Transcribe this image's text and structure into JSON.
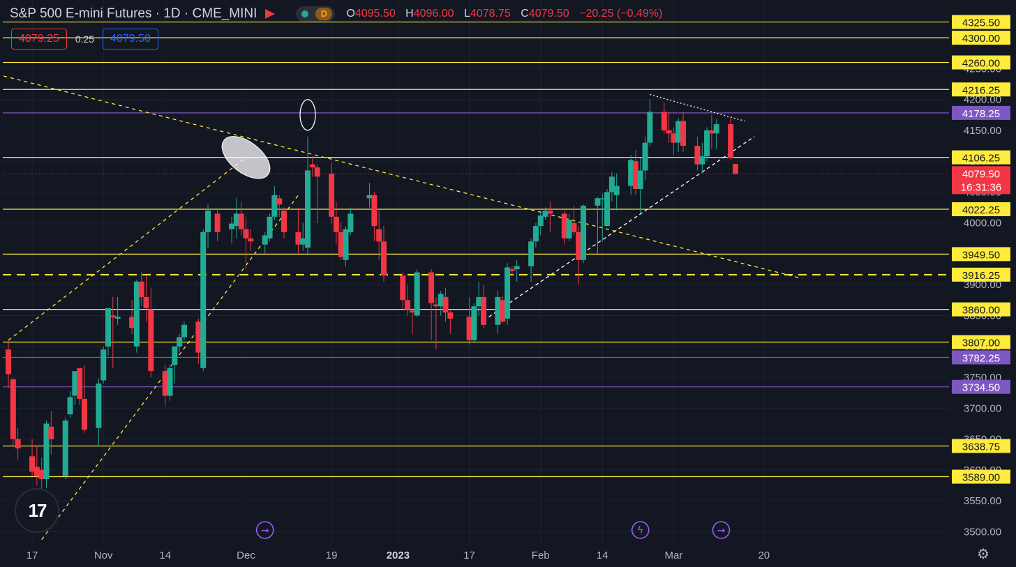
{
  "header": {
    "symbol": "S&P 500 E-mini Futures · 1D · CME_MINI",
    "badge": "D",
    "ohlc": {
      "o_label": "O",
      "o": "4095.50",
      "h_label": "H",
      "h": "4096.00",
      "l_label": "L",
      "l": "4078.75",
      "c_label": "C",
      "c": "4079.50",
      "change": "−20.25 (−0.49%)"
    }
  },
  "quote": {
    "bid": "4079.25",
    "spread": "0.25",
    "ask": "4079.50"
  },
  "logo_text": "17",
  "settings_icon": "gear-icon",
  "colors": {
    "background": "#131722",
    "up": "#22ab94",
    "down": "#f23645",
    "level_yellow": "#ffeb3b",
    "level_purple": "#7e57c2",
    "axis_text": "#b2b5be"
  },
  "chart_data": {
    "type": "candlestick",
    "ylim": [
      3480,
      4360
    ],
    "y_ticks": [
      3500,
      3550,
      3600,
      3650,
      3700,
      3750,
      3800,
      3850,
      3900,
      4000,
      4050,
      4100,
      4150,
      4200,
      4250
    ],
    "x_ticks": [
      "17",
      "Nov",
      "14",
      "Dec",
      "19",
      "2023",
      "17",
      "Feb",
      "14",
      "Mar",
      "20"
    ],
    "x_tick_dates": [
      "2022-10-17",
      "2022-11-01",
      "2022-11-14",
      "2022-12-01",
      "2022-12-19",
      "2023-01-02",
      "2023-01-17",
      "2023-02-01",
      "2023-02-14",
      "2023-03-01",
      "2023-03-20"
    ],
    "horizontal_levels": [
      {
        "price": 4325.5,
        "label": "4325.50",
        "color": "yellow"
      },
      {
        "price": 4300.0,
        "label": "4300.00",
        "color": "yellow"
      },
      {
        "price": 4260.0,
        "label": "4260.00",
        "color": "yellow"
      },
      {
        "price": 4216.25,
        "label": "4216.25",
        "color": "yellow"
      },
      {
        "price": 4178.25,
        "label": "4178.25",
        "color": "purple"
      },
      {
        "price": 4106.25,
        "label": "4106.25",
        "color": "yellow"
      },
      {
        "price": 4022.25,
        "label": "4022.25",
        "color": "yellow"
      },
      {
        "price": 3949.5,
        "label": "3949.50",
        "color": "yellow"
      },
      {
        "price": 3916.25,
        "label": "3916.25",
        "color": "yellow",
        "dashed": true
      },
      {
        "price": 3860.0,
        "label": "3860.00",
        "color": "yellow"
      },
      {
        "price": 3807.0,
        "label": "3807.00",
        "color": "yellow"
      },
      {
        "price": 3782.25,
        "label": "3782.25",
        "color": "purple"
      },
      {
        "price": 3734.5,
        "label": "3734.50",
        "color": "purple"
      },
      {
        "price": 3638.75,
        "label": "3638.75",
        "color": "yellow"
      },
      {
        "price": 3589.0,
        "label": "3589.00",
        "color": "yellow"
      }
    ],
    "last_price": {
      "price": 4079.5,
      "label": "4079.50",
      "countdown": "16:31:36"
    },
    "candles": [
      {
        "date": "2022-10-12",
        "o": 3795,
        "h": 3812,
        "l": 3733,
        "c": 3755
      },
      {
        "date": "2022-10-13",
        "o": 3747,
        "h": 3748,
        "l": 3640,
        "c": 3650
      },
      {
        "date": "2022-10-14",
        "o": 3650,
        "h": 3668,
        "l": 3617,
        "c": 3635
      },
      {
        "date": "2022-10-17",
        "o": 3622,
        "h": 3650,
        "l": 3590,
        "c": 3597
      },
      {
        "date": "2022-10-18",
        "o": 3605,
        "h": 3640,
        "l": 3575,
        "c": 3590
      },
      {
        "date": "2022-10-19",
        "o": 3600,
        "h": 3620,
        "l": 3567,
        "c": 3585
      },
      {
        "date": "2022-10-20",
        "o": 3585,
        "h": 3680,
        "l": 3570,
        "c": 3675
      },
      {
        "date": "2022-10-21",
        "o": 3670,
        "h": 3695,
        "l": 3625,
        "c": 3650
      },
      {
        "date": "2022-10-24",
        "o": 3590,
        "h": 3685,
        "l": 3585,
        "c": 3680
      },
      {
        "date": "2022-10-25",
        "o": 3690,
        "h": 3728,
        "l": 3685,
        "c": 3718
      },
      {
        "date": "2022-10-26",
        "o": 3720,
        "h": 3752,
        "l": 3705,
        "c": 3760
      },
      {
        "date": "2022-10-27",
        "o": 3765,
        "h": 3765,
        "l": 3705,
        "c": 3715
      },
      {
        "date": "2022-10-28",
        "o": 3715,
        "h": 3770,
        "l": 3660,
        "c": 3665
      },
      {
        "date": "2022-10-31",
        "o": 3668,
        "h": 3748,
        "l": 3640,
        "c": 3740
      },
      {
        "date": "2022-11-01",
        "o": 3745,
        "h": 3800,
        "l": 3740,
        "c": 3795
      },
      {
        "date": "2022-11-02",
        "o": 3800,
        "h": 3860,
        "l": 3785,
        "c": 3862
      },
      {
        "date": "2022-11-03",
        "o": 3850,
        "h": 3880,
        "l": 3765,
        "c": 3847
      },
      {
        "date": "2022-11-04",
        "o": 3845,
        "h": 3880,
        "l": 3835,
        "c": 3848
      },
      {
        "date": "2022-11-07",
        "o": 3848,
        "h": 3875,
        "l": 3820,
        "c": 3830
      },
      {
        "date": "2022-11-08",
        "o": 3800,
        "h": 3908,
        "l": 3790,
        "c": 3905
      },
      {
        "date": "2022-11-09",
        "o": 3905,
        "h": 3920,
        "l": 3865,
        "c": 3880
      },
      {
        "date": "2022-11-10",
        "o": 3880,
        "h": 3915,
        "l": 3840,
        "c": 3862
      },
      {
        "date": "2022-11-11",
        "o": 3860,
        "h": 3895,
        "l": 3750,
        "c": 3760
      },
      {
        "date": "2022-11-14",
        "o": 3760,
        "h": 3770,
        "l": 3705,
        "c": 3720
      },
      {
        "date": "2022-11-15",
        "o": 3720,
        "h": 3770,
        "l": 3712,
        "c": 3765
      },
      {
        "date": "2022-11-16",
        "o": 3770,
        "h": 3800,
        "l": 3740,
        "c": 3800
      },
      {
        "date": "2022-11-17",
        "o": 3800,
        "h": 3820,
        "l": 3790,
        "c": 3815
      },
      {
        "date": "2022-11-18",
        "o": 3815,
        "h": 3840,
        "l": 3810,
        "c": 3835
      },
      {
        "date": "2022-11-21",
        "o": 3840,
        "h": 3845,
        "l": 3772,
        "c": 3790
      },
      {
        "date": "2022-11-22",
        "o": 3765,
        "h": 3990,
        "l": 3760,
        "c": 3985
      },
      {
        "date": "2022-11-23",
        "o": 3985,
        "h": 4030,
        "l": 3960,
        "c": 4020
      },
      {
        "date": "2022-11-25",
        "o": 4015,
        "h": 4025,
        "l": 3970,
        "c": 3985
      },
      {
        "date": "2022-11-28",
        "o": 3990,
        "h": 4010,
        "l": 3967,
        "c": 3999
      },
      {
        "date": "2022-11-29",
        "o": 3995,
        "h": 4040,
        "l": 3975,
        "c": 4015
      },
      {
        "date": "2022-11-30",
        "o": 4015,
        "h": 4035,
        "l": 3980,
        "c": 3990
      },
      {
        "date": "2022-12-01",
        "o": 3990,
        "h": 4010,
        "l": 3925,
        "c": 3975
      },
      {
        "date": "2022-12-02",
        "o": 3975,
        "h": 3990,
        "l": 3955,
        "c": 3970
      },
      {
        "date": "2022-12-05",
        "o": 3965,
        "h": 3985,
        "l": 3950,
        "c": 3980
      },
      {
        "date": "2022-12-06",
        "o": 3975,
        "h": 4015,
        "l": 3970,
        "c": 4010
      },
      {
        "date": "2022-12-07",
        "o": 4010,
        "h": 4060,
        "l": 4005,
        "c": 4045
      },
      {
        "date": "2022-12-08",
        "o": 4040,
        "h": 4045,
        "l": 4010,
        "c": 4030
      },
      {
        "date": "2022-12-09",
        "o": 4020,
        "h": 4025,
        "l": 3975,
        "c": 3985
      },
      {
        "date": "2022-12-12",
        "o": 3985,
        "h": 4025,
        "l": 3950,
        "c": 3965
      },
      {
        "date": "2022-12-13",
        "o": 3965,
        "h": 4000,
        "l": 3955,
        "c": 3975
      },
      {
        "date": "2022-12-14",
        "o": 3960,
        "h": 4140,
        "l": 3950,
        "c": 4085
      },
      {
        "date": "2022-12-15",
        "o": 4095,
        "h": 4108,
        "l": 4075,
        "c": 4090
      },
      {
        "date": "2022-12-16",
        "o": 4090,
        "h": 4095,
        "l": 4000,
        "c": 4075
      },
      {
        "date": "2022-12-19",
        "o": 4080,
        "h": 4098,
        "l": 3998,
        "c": 4010
      },
      {
        "date": "2022-12-20",
        "o": 4010,
        "h": 4035,
        "l": 3965,
        "c": 3985
      },
      {
        "date": "2022-12-21",
        "o": 3985,
        "h": 4000,
        "l": 3940,
        "c": 3945
      },
      {
        "date": "2022-12-22",
        "o": 3940,
        "h": 3995,
        "l": 3930,
        "c": 3990
      },
      {
        "date": "2022-12-23",
        "o": 3985,
        "h": 4025,
        "l": 3980,
        "c": 4015
      },
      {
        "date": "2022-12-27",
        "o": 4040,
        "h": 4065,
        "l": 4025,
        "c": 4045
      },
      {
        "date": "2022-12-28",
        "o": 4045,
        "h": 4050,
        "l": 3970,
        "c": 3995
      },
      {
        "date": "2022-12-29",
        "o": 3990,
        "h": 4020,
        "l": 3940,
        "c": 3970
      },
      {
        "date": "2022-12-30",
        "o": 3970,
        "h": 3995,
        "l": 3905,
        "c": 3915
      },
      {
        "date": "2023-01-03",
        "o": 3915,
        "h": 3920,
        "l": 3860,
        "c": 3875
      },
      {
        "date": "2023-01-04",
        "o": 3875,
        "h": 3900,
        "l": 3850,
        "c": 3860
      },
      {
        "date": "2023-01-05",
        "o": 3858,
        "h": 3862,
        "l": 3820,
        "c": 3855
      },
      {
        "date": "2023-01-06",
        "o": 3850,
        "h": 3925,
        "l": 3848,
        "c": 3920
      },
      {
        "date": "2023-01-09",
        "o": 3920,
        "h": 3925,
        "l": 3810,
        "c": 3870
      },
      {
        "date": "2023-01-10",
        "o": 3868,
        "h": 3880,
        "l": 3795,
        "c": 3865
      },
      {
        "date": "2023-01-11",
        "o": 3865,
        "h": 3890,
        "l": 3850,
        "c": 3885
      },
      {
        "date": "2023-01-12",
        "o": 3880,
        "h": 3895,
        "l": 3840,
        "c": 3855
      },
      {
        "date": "2023-01-13",
        "o": 3855,
        "h": 3860,
        "l": 3820,
        "c": 3845
      },
      {
        "date": "2023-01-17",
        "o": 3848,
        "h": 3880,
        "l": 3803,
        "c": 3810
      },
      {
        "date": "2023-01-18",
        "o": 3810,
        "h": 3870,
        "l": 3808,
        "c": 3865
      },
      {
        "date": "2023-01-19",
        "o": 3865,
        "h": 3905,
        "l": 3850,
        "c": 3880
      },
      {
        "date": "2023-01-20",
        "o": 3880,
        "h": 3900,
        "l": 3830,
        "c": 3835
      },
      {
        "date": "2023-01-23",
        "o": 3835,
        "h": 3890,
        "l": 3820,
        "c": 3880
      },
      {
        "date": "2023-01-24",
        "o": 3875,
        "h": 3882,
        "l": 3838,
        "c": 3840
      },
      {
        "date": "2023-01-25",
        "o": 3845,
        "h": 3935,
        "l": 3835,
        "c": 3928
      },
      {
        "date": "2023-01-26",
        "o": 3925,
        "h": 3930,
        "l": 3915,
        "c": 3922
      },
      {
        "date": "2023-01-27",
        "o": 3925,
        "h": 3940,
        "l": 3905,
        "c": 3930
      },
      {
        "date": "2023-01-30",
        "o": 3930,
        "h": 3975,
        "l": 3905,
        "c": 3970
      },
      {
        "date": "2023-01-31",
        "o": 3970,
        "h": 4000,
        "l": 3960,
        "c": 3995
      },
      {
        "date": "2023-02-01",
        "o": 3995,
        "h": 4020,
        "l": 3980,
        "c": 4012
      },
      {
        "date": "2023-02-02",
        "o": 4010,
        "h": 4025,
        "l": 4005,
        "c": 4020
      },
      {
        "date": "2023-02-03",
        "o": 4020,
        "h": 4035,
        "l": 3985,
        "c": 4015
      },
      {
        "date": "2023-02-06",
        "o": 4015,
        "h": 4020,
        "l": 3965,
        "c": 3975
      },
      {
        "date": "2023-02-07",
        "o": 3975,
        "h": 4015,
        "l": 3970,
        "c": 4005
      },
      {
        "date": "2023-02-08",
        "o": 4000,
        "h": 4028,
        "l": 3980,
        "c": 3985
      },
      {
        "date": "2023-02-09",
        "o": 3985,
        "h": 3995,
        "l": 3900,
        "c": 3940
      },
      {
        "date": "2023-02-10",
        "o": 3940,
        "h": 4030,
        "l": 3935,
        "c": 4028
      },
      {
        "date": "2023-02-13",
        "o": 4028,
        "h": 4042,
        "l": 3950,
        "c": 4040
      },
      {
        "date": "2023-02-14",
        "o": 4040,
        "h": 4048,
        "l": 3970,
        "c": 4040
      },
      {
        "date": "2023-02-15",
        "o": 3995,
        "h": 4055,
        "l": 3995,
        "c": 4050
      },
      {
        "date": "2023-02-16",
        "o": 4050,
        "h": 4082,
        "l": 4035,
        "c": 4075
      },
      {
        "date": "2023-02-17",
        "o": 4045,
        "h": 4080,
        "l": 4020,
        "c": 4060
      },
      {
        "date": "2023-02-20",
        "o": 4060,
        "h": 4110,
        "l": 4045,
        "c": 4102
      },
      {
        "date": "2023-02-21",
        "o": 4100,
        "h": 4118,
        "l": 4045,
        "c": 4055
      },
      {
        "date": "2023-02-22",
        "o": 4055,
        "h": 4105,
        "l": 4015,
        "c": 4085
      },
      {
        "date": "2023-02-23",
        "o": 4085,
        "h": 4140,
        "l": 4070,
        "c": 4130
      },
      {
        "date": "2023-02-24",
        "o": 4130,
        "h": 4200,
        "l": 4125,
        "c": 4180
      },
      {
        "date": "2023-02-27",
        "o": 4180,
        "h": 4195,
        "l": 4145,
        "c": 4150
      },
      {
        "date": "2023-02-28",
        "o": 4150,
        "h": 4180,
        "l": 4130,
        "c": 4145
      },
      {
        "date": "2023-03-01",
        "o": 4145,
        "h": 4155,
        "l": 4110,
        "c": 4130
      },
      {
        "date": "2023-03-02",
        "o": 4130,
        "h": 4170,
        "l": 4115,
        "c": 4165
      },
      {
        "date": "2023-03-03",
        "o": 4165,
        "h": 4180,
        "l": 4115,
        "c": 4125
      },
      {
        "date": "2023-03-06",
        "o": 4125,
        "h": 4140,
        "l": 4085,
        "c": 4095
      },
      {
        "date": "2023-03-07",
        "o": 4095,
        "h": 4130,
        "l": 4080,
        "c": 4108
      },
      {
        "date": "2023-03-08",
        "o": 4108,
        "h": 4155,
        "l": 4100,
        "c": 4150
      },
      {
        "date": "2023-03-09",
        "o": 4150,
        "h": 4175,
        "l": 4120,
        "c": 4145
      },
      {
        "date": "2023-03-10",
        "o": 4145,
        "h": 4168,
        "l": 4120,
        "c": 4160
      },
      {
        "date": "2023-03-13",
        "o": 4160,
        "h": 4170,
        "l": 4102,
        "c": 4105
      },
      {
        "date": "2023-03-14",
        "o": 4095.5,
        "h": 4096,
        "l": 4078.75,
        "c": 4079.5
      }
    ]
  }
}
